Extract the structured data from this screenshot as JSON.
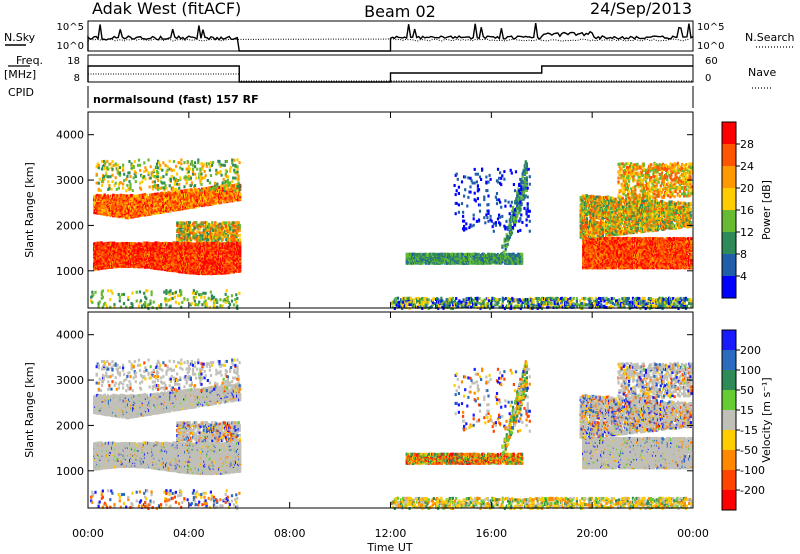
{
  "header": {
    "station": "Adak West (fitACF)",
    "beam": "Beam 02",
    "date": "24/Sep/2013"
  },
  "top_panels": {
    "nsky_label": "N.Sky",
    "nsearch_label": "N.Search",
    "freq_label_line1": "Freq.",
    "freq_label_line2": "[MHz]",
    "nave_label": "Nave",
    "cpid_label": "CPID",
    "cpid_text": "normalsound (fast) 157 RF",
    "nsky_ticks": [
      "10^5",
      "10^0"
    ],
    "nsearch_ticks": [
      "10^5",
      "10^0"
    ],
    "freq_ticks": [
      "18",
      "8"
    ],
    "nave_ticks": [
      "60",
      "0"
    ]
  },
  "chart_data": [
    {
      "type": "heatmap",
      "name": "power-panel",
      "ylabel": "Slant Range [km]",
      "colorbar_label": "Power [dB]",
      "colorbar_ticks": [
        "28",
        "24",
        "20",
        "16",
        "12",
        "8",
        "4"
      ],
      "colorbar_colors": [
        "#ff0000",
        "#ff5500",
        "#ff9900",
        "#ffcc00",
        "#66bb33",
        "#2e8b57",
        "#1f5faa",
        "#0000ff"
      ],
      "ylim": [
        180,
        4500
      ],
      "yticks": [
        1000,
        2000,
        3000,
        4000
      ],
      "xlim": [
        0,
        24
      ],
      "data_gap_hours": [
        6,
        12
      ]
    },
    {
      "type": "heatmap",
      "name": "velocity-panel",
      "ylabel": "Slant Range [km]",
      "colorbar_label": "Velocity [m s⁻¹]",
      "colorbar_ticks": [
        "200",
        "100",
        "50",
        "15",
        "-15",
        "-50",
        "-100",
        "-200"
      ],
      "colorbar_colors": [
        "#1a1aff",
        "#2a6bbf",
        "#2e8b57",
        "#66cc33",
        "#c0c0b8",
        "#ffcc00",
        "#ff8800",
        "#ff4400",
        "#ff0000"
      ],
      "ylim": [
        180,
        4500
      ],
      "yticks": [
        1000,
        2000,
        3000,
        4000
      ],
      "xlim": [
        0,
        24
      ],
      "data_gap_hours": [
        6,
        12
      ]
    }
  ],
  "x_axis": {
    "ticks": [
      "00:00",
      "04:00",
      "08:00",
      "12:00",
      "16:00",
      "20:00",
      "00:00"
    ],
    "label": "Time UT"
  },
  "colors": {
    "gray_scatter": "#c0c0b8"
  }
}
